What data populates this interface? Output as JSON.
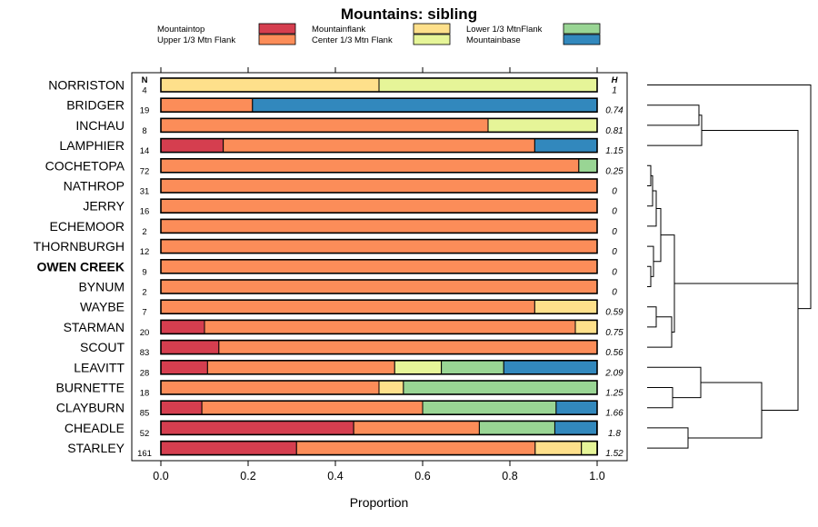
{
  "chart_data": {
    "type": "bar",
    "stacked": true,
    "orientation": "horizontal",
    "title": "Mountains: sibling",
    "xlabel": "Proportion",
    "xlim": [
      0,
      1
    ],
    "xticks": [
      "0.0",
      "0.2",
      "0.4",
      "0.6",
      "0.8",
      "1.0"
    ],
    "n_header": "N",
    "h_header": "H",
    "legend": [
      {
        "name": "Mountaintop",
        "color": "#D53E4F"
      },
      {
        "name": "Upper 1/3 Mtn Flank",
        "color": "#FC8D59"
      },
      {
        "name": "Mountainflank",
        "color": "#FEE08B"
      },
      {
        "name": "Center 1/3 Mtn Flank",
        "color": "#E6F598"
      },
      {
        "name": "Lower 1/3 MtnFlank",
        "color": "#99D594"
      },
      {
        "name": "Mountainbase",
        "color": "#3288BD"
      }
    ],
    "rows": [
      {
        "label": "NORRISTON",
        "n": "4",
        "h": "1",
        "bold": false,
        "values": [
          0,
          0,
          0.5,
          0.5,
          0,
          0
        ]
      },
      {
        "label": "BRIDGER",
        "n": "19",
        "h": "0.74",
        "bold": false,
        "values": [
          0,
          0.21,
          0,
          0,
          0,
          0.79
        ]
      },
      {
        "label": "INCHAU",
        "n": "8",
        "h": "0.81",
        "bold": false,
        "values": [
          0,
          0.75,
          0,
          0.25,
          0,
          0
        ]
      },
      {
        "label": "LAMPHIER",
        "n": "14",
        "h": "1.15",
        "bold": false,
        "values": [
          0.143,
          0.714,
          0,
          0,
          0,
          0.143
        ]
      },
      {
        "label": "COCHETOPA",
        "n": "72",
        "h": "0.25",
        "bold": false,
        "values": [
          0,
          0.958,
          0,
          0,
          0.042,
          0
        ]
      },
      {
        "label": "NATHROP",
        "n": "31",
        "h": "0",
        "bold": false,
        "values": [
          0,
          1,
          0,
          0,
          0,
          0
        ]
      },
      {
        "label": "JERRY",
        "n": "16",
        "h": "0",
        "bold": false,
        "values": [
          0,
          1,
          0,
          0,
          0,
          0
        ]
      },
      {
        "label": "ECHEMOOR",
        "n": "2",
        "h": "0",
        "bold": false,
        "values": [
          0,
          1,
          0,
          0,
          0,
          0
        ]
      },
      {
        "label": "THORNBURGH",
        "n": "12",
        "h": "0",
        "bold": false,
        "values": [
          0,
          1,
          0,
          0,
          0,
          0
        ]
      },
      {
        "label": "OWEN CREEK",
        "n": "9",
        "h": "0",
        "bold": true,
        "values": [
          0,
          1,
          0,
          0,
          0,
          0
        ]
      },
      {
        "label": "BYNUM",
        "n": "2",
        "h": "0",
        "bold": false,
        "values": [
          0,
          1,
          0,
          0,
          0,
          0
        ]
      },
      {
        "label": "WAYBE",
        "n": "7",
        "h": "0.59",
        "bold": false,
        "values": [
          0,
          0.857,
          0.143,
          0,
          0,
          0
        ]
      },
      {
        "label": "STARMAN",
        "n": "20",
        "h": "0.75",
        "bold": false,
        "values": [
          0.1,
          0.85,
          0.05,
          0,
          0,
          0
        ]
      },
      {
        "label": "SCOUT",
        "n": "83",
        "h": "0.56",
        "bold": false,
        "values": [
          0.133,
          0.867,
          0,
          0,
          0,
          0
        ]
      },
      {
        "label": "LEAVITT",
        "n": "28",
        "h": "2.09",
        "bold": false,
        "values": [
          0.107,
          0.429,
          0,
          0.107,
          0.143,
          0.214
        ]
      },
      {
        "label": "BURNETTE",
        "n": "18",
        "h": "1.25",
        "bold": false,
        "values": [
          0,
          0.5,
          0.056,
          0,
          0.444,
          0
        ]
      },
      {
        "label": "CLAYBURN",
        "n": "85",
        "h": "1.66",
        "bold": false,
        "values": [
          0.094,
          0.506,
          0,
          0,
          0.306,
          0.094
        ]
      },
      {
        "label": "CHEADLE",
        "n": "52",
        "h": "1.8",
        "bold": false,
        "values": [
          0.442,
          0.288,
          0,
          0,
          0.173,
          0.096
        ]
      },
      {
        "label": "STARLEY",
        "n": "161",
        "h": "1.52",
        "bold": false,
        "values": [
          0.311,
          0.547,
          0.106,
          0.037,
          0,
          0
        ]
      }
    ]
  }
}
